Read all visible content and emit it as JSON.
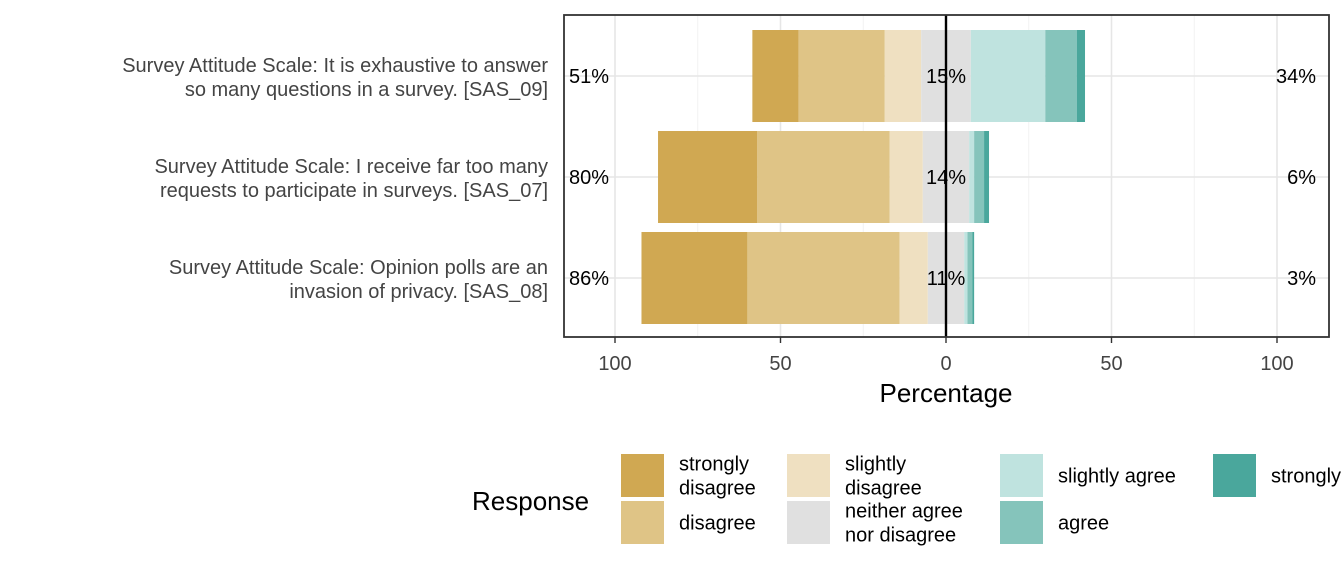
{
  "chart_data": {
    "type": "bar",
    "orientation": "horizontal",
    "stacked": "diverging",
    "categories": [
      [
        "Survey Attitude Scale: It is exhaustive to answer",
        "so many questions in a survey. [SAS_09]"
      ],
      [
        "Survey Attitude Scale: I receive far too many",
        "requests to participate in surveys. [SAS_07]"
      ],
      [
        "Survey Attitude Scale: Opinion polls are an",
        "invasion of privacy. [SAS_08]"
      ]
    ],
    "series": [
      {
        "name": "strongly disagree",
        "name_lines": [
          "strongly",
          "disagree"
        ],
        "color": "#D0A852",
        "values": [
          14,
          30,
          32
        ]
      },
      {
        "name": "disagree",
        "name_lines": [
          "disagree"
        ],
        "color": "#DFC486",
        "values": [
          26,
          40,
          46
        ]
      },
      {
        "name": "slightly disagree",
        "name_lines": [
          "slightly",
          "disagree"
        ],
        "color": "#EFE0C1",
        "values": [
          11,
          10,
          8.5
        ]
      },
      {
        "name": "neither agree nor disagree",
        "name_lines": [
          "neither agree",
          "nor disagree"
        ],
        "color": "#E0E0E0",
        "values": [
          15,
          14,
          11
        ]
      },
      {
        "name": "slightly agree",
        "name_lines": [
          "slightly agree"
        ],
        "color": "#BFE3DF",
        "values": [
          22.5,
          1.5,
          1
        ]
      },
      {
        "name": "agree",
        "name_lines": [
          "agree"
        ],
        "color": "#85C4BB",
        "values": [
          9.5,
          3,
          1.5
        ]
      },
      {
        "name": "strongly agree",
        "name_lines": [
          "strongly agree"
        ],
        "color": "#4AA79C",
        "values": [
          2.5,
          1.5,
          0.5
        ]
      }
    ],
    "left_totals": [
      "51%",
      "80%",
      "86%"
    ],
    "neutral_labels": [
      "15%",
      "14%",
      "11%"
    ],
    "right_totals": [
      "34%",
      "6%",
      "3%"
    ],
    "xlim": [
      -115,
      115
    ],
    "xticks": [
      -100,
      -50,
      0,
      50,
      100
    ],
    "xtick_labels": [
      "100",
      "50",
      "0",
      "50",
      "100"
    ],
    "xlabel": "Percentage",
    "ylabel": "",
    "grid": true,
    "legend": {
      "title": "Response",
      "position": "bottom"
    }
  }
}
